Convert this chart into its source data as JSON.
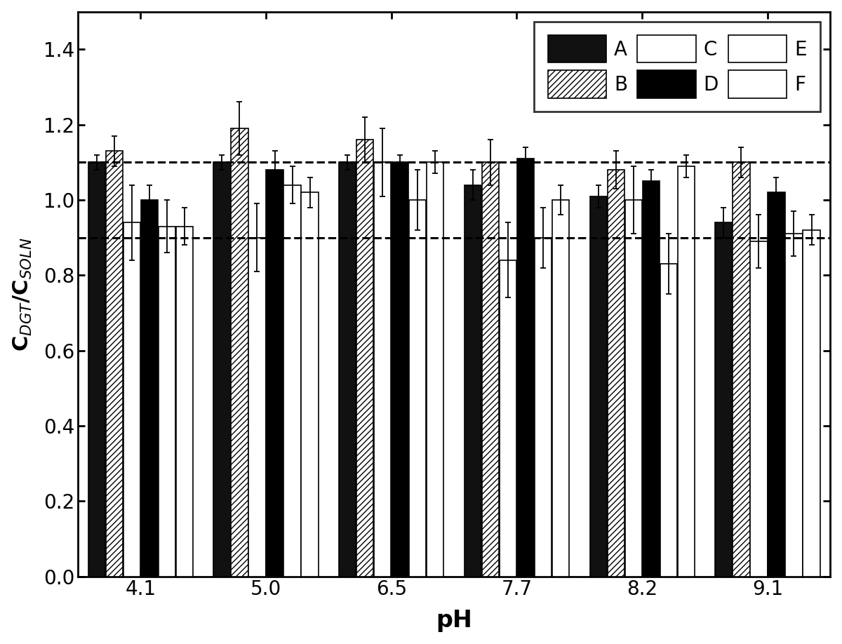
{
  "ph_labels": [
    "4.1",
    "5.0",
    "6.5",
    "7.7",
    "8.2",
    "9.1"
  ],
  "series_labels": [
    "A",
    "B",
    "C",
    "D",
    "E",
    "F"
  ],
  "values": [
    [
      1.1,
      1.13,
      0.94,
      1.0,
      0.93,
      0.93
    ],
    [
      1.1,
      1.19,
      0.9,
      1.08,
      1.04,
      1.02
    ],
    [
      1.1,
      1.16,
      1.1,
      1.1,
      1.0,
      1.1
    ],
    [
      1.04,
      1.1,
      0.84,
      1.11,
      0.9,
      1.0
    ],
    [
      1.01,
      1.08,
      1.0,
      1.05,
      0.83,
      1.09
    ],
    [
      0.94,
      1.1,
      0.89,
      1.02,
      0.91,
      0.92
    ]
  ],
  "errors": [
    [
      0.02,
      0.04,
      0.1,
      0.04,
      0.07,
      0.05
    ],
    [
      0.02,
      0.07,
      0.09,
      0.05,
      0.05,
      0.04
    ],
    [
      0.02,
      0.06,
      0.09,
      0.02,
      0.08,
      0.03
    ],
    [
      0.04,
      0.06,
      0.1,
      0.03,
      0.08,
      0.04
    ],
    [
      0.03,
      0.05,
      0.09,
      0.03,
      0.08,
      0.03
    ],
    [
      0.04,
      0.04,
      0.07,
      0.04,
      0.06,
      0.04
    ]
  ],
  "dashed_lines": [
    0.9,
    1.1
  ],
  "ylim": [
    0.0,
    1.5
  ],
  "yticks": [
    0.0,
    0.2,
    0.4,
    0.6,
    0.8,
    1.0,
    1.2,
    1.4
  ],
  "ylabel": "C$_{DGT}$/C$_{SOLN}$",
  "xlabel": "pH",
  "bar_width": 0.14,
  "background_color": "#ffffff",
  "styles": [
    {
      "facecolor": "#111111",
      "hatch": null,
      "edgecolor": "black",
      "linewidth": 1.2,
      "label": "A"
    },
    {
      "facecolor": "white",
      "hatch": "////",
      "edgecolor": "black",
      "linewidth": 1.2,
      "label": "B"
    },
    {
      "facecolor": "white",
      "hatch": "====",
      "edgecolor": "black",
      "linewidth": 1.2,
      "label": "C"
    },
    {
      "facecolor": "black",
      "hatch": null,
      "edgecolor": "black",
      "linewidth": 1.2,
      "label": "D"
    },
    {
      "facecolor": "white",
      "hatch": null,
      "edgecolor": "black",
      "linewidth": 1.2,
      "label": "E"
    },
    {
      "facecolor": "white",
      "hatch": null,
      "edgecolor": "black",
      "linewidth": 1.2,
      "label": "F"
    }
  ]
}
